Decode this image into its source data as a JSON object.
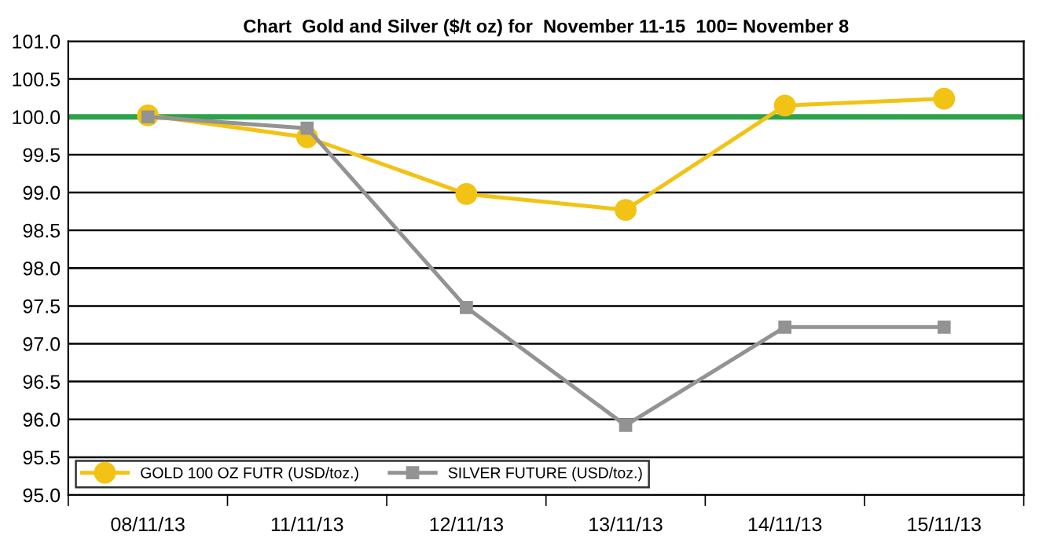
{
  "chart_data": {
    "type": "line",
    "title": "Chart  Gold and Silver ($/t oz) for  November 11-15  100= November 8",
    "categories": [
      "08/11/13",
      "11/11/13",
      "12/11/13",
      "13/11/13",
      "14/11/13",
      "15/11/13"
    ],
    "series": [
      {
        "name": "GOLD 100 OZ FUTR (USD/toz.)",
        "color": "#f2c314",
        "marker": "circle",
        "values": [
          100.02,
          99.73,
          98.98,
          98.77,
          100.15,
          100.24
        ]
      },
      {
        "name": "SILVER FUTURE (USD/toz.)",
        "color": "#939393",
        "marker": "square",
        "values": [
          100.0,
          99.85,
          97.48,
          95.92,
          97.22,
          97.22
        ]
      }
    ],
    "ylim": [
      95.0,
      101.0
    ],
    "yticks": [
      {
        "value": 95,
        "label": "95.0"
      },
      {
        "value": 95.5,
        "label": "95.5"
      },
      {
        "value": 96,
        "label": "96.0"
      },
      {
        "value": 96.5,
        "label": "96.5"
      },
      {
        "value": 97,
        "label": "97.0"
      },
      {
        "value": 97.5,
        "label": "97.5"
      },
      {
        "value": 98,
        "label": "98.0"
      },
      {
        "value": 98.5,
        "label": "98.5"
      },
      {
        "value": 99,
        "label": "99.0"
      },
      {
        "value": 99.5,
        "label": "99.5"
      },
      {
        "value": 100,
        "label": "100.0"
      },
      {
        "value": 100.5,
        "label": "100.5"
      },
      {
        "value": 101,
        "label": "101.0"
      }
    ],
    "ref_lines": [
      {
        "axis": "y",
        "value": 100,
        "color": "#2ca24a"
      }
    ],
    "grid": "y",
    "legend": "bottom left",
    "line_style": "solid"
  }
}
